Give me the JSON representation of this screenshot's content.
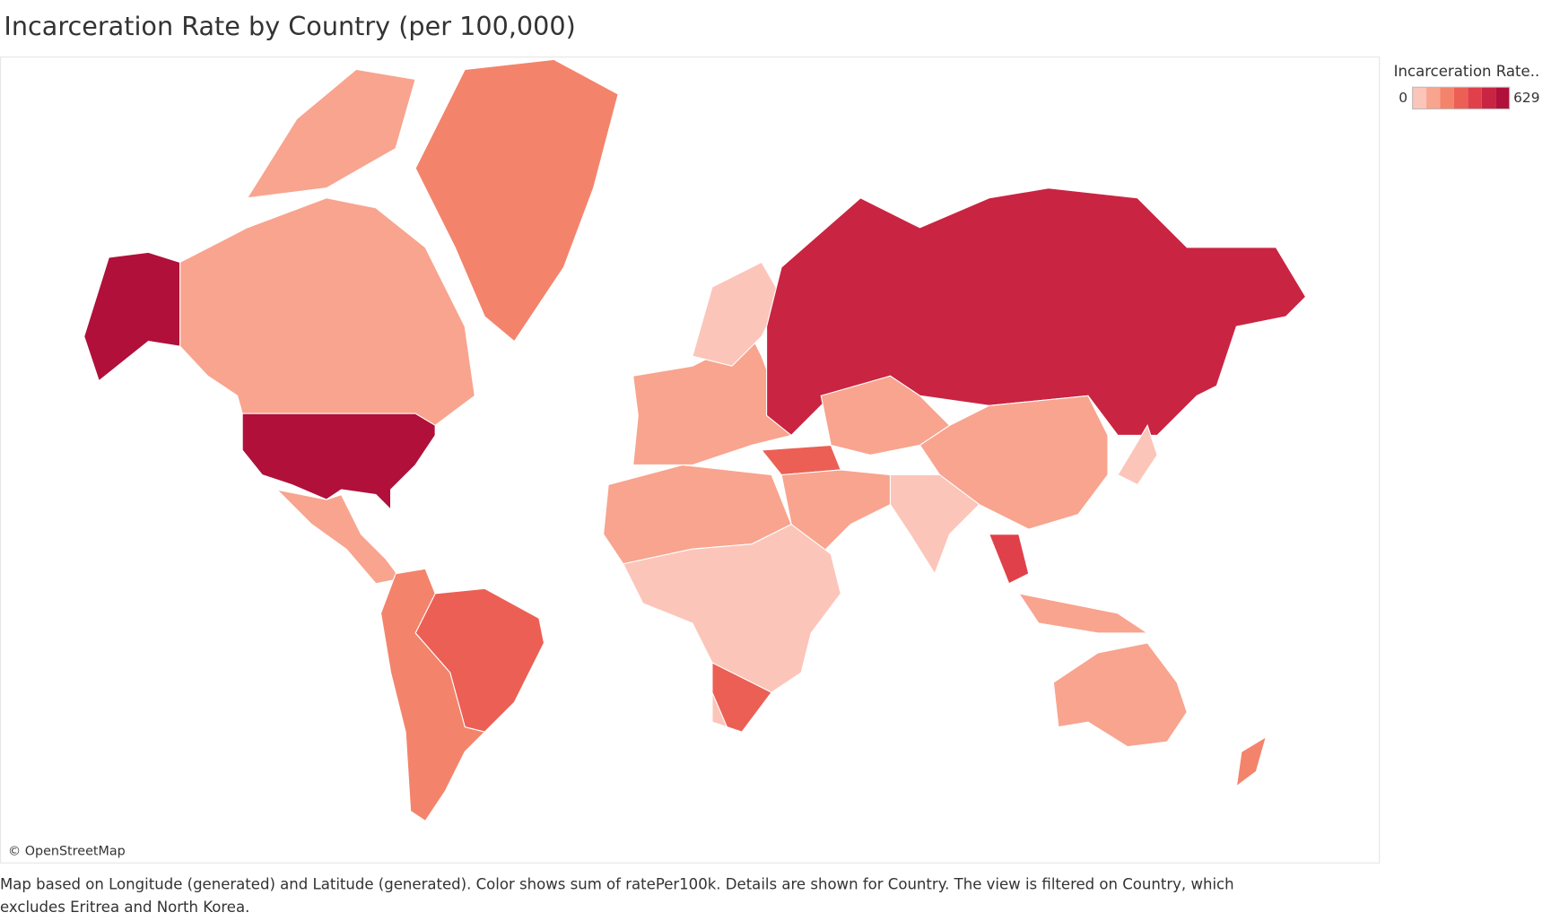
{
  "map": {
    "title": "Incarceration Rate by Country (per 100,000)",
    "legend": {
      "title": "Incarceration Rate..",
      "min": 0,
      "max": 629,
      "colors": [
        "#fcc5b9",
        "#f8a48e",
        "#f4836c",
        "#ec5f55",
        "#e0404a",
        "#c92442",
        "#b0103a"
      ]
    },
    "attribution": "© OpenStreetMap",
    "caption": [
      "Map based on Longitude (generated) and Latitude (generated).  Color shows sum of ratePer100k.  Details are shown for Country. The view is filtered on Country, which",
      "excludes Eritrea and North Korea."
    ],
    "values": [
      629,
      629,
      110,
      110,
      260,
      170,
      330,
      220,
      150,
      60,
      450,
      270,
      150,
      120,
      30,
      170,
      120,
      80,
      280,
      440,
      100,
      150,
      200,
      40
    ]
  }
}
